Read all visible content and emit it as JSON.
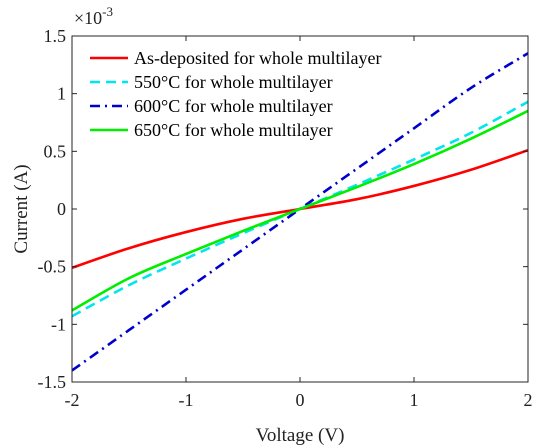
{
  "chart_data": {
    "type": "line",
    "xlabel": "Voltage (V)",
    "ylabel": "Current (A)",
    "xlim": [
      -2,
      2
    ],
    "ylim": [
      -0.0015,
      0.0015
    ],
    "x_ticks": [
      -2,
      -1,
      0,
      1,
      2
    ],
    "x_tick_labels": [
      "-2",
      "-1",
      "0",
      "1",
      "2"
    ],
    "y_ticks": [
      -0.0015,
      -0.001,
      -0.0005,
      0,
      0.0005,
      0.001,
      0.0015
    ],
    "y_tick_labels": [
      "-1.5",
      "-1",
      "-0.5",
      "0",
      "0.5",
      "1",
      "1.5"
    ],
    "y_multiplier_base": "×10",
    "y_multiplier_exp": "-3",
    "grid": false,
    "legend_position": "top-left",
    "x": [
      -2,
      -1.5,
      -1,
      -0.5,
      0,
      0.5,
      1,
      1.5,
      2
    ],
    "series": [
      {
        "name": "As-deposited for whole multilayer",
        "color": "#ff0000",
        "dash": "solid",
        "values": [
          -0.00051,
          -0.00034,
          -0.0002,
          -8.5e-05,
          0,
          8.5e-05,
          0.0002,
          0.00034,
          0.00051
        ]
      },
      {
        "name": "550°C for whole multilayer",
        "color": "#00e5ee",
        "dash": "dash",
        "values": [
          -0.00093,
          -0.00066,
          -0.00043,
          -0.00021,
          0,
          0.00021,
          0.00043,
          0.00066,
          0.00093
        ]
      },
      {
        "name": "600°C for whole multilayer",
        "color": "#0000cd",
        "dash": "dashdot",
        "values": [
          -0.0014,
          -0.00105,
          -0.0007,
          -0.00035,
          0,
          0.00035,
          0.0007,
          0.00105,
          0.00135
        ]
      },
      {
        "name": "650°C for whole multilayer",
        "color": "#00ee00",
        "dash": "solid",
        "values": [
          -0.00088,
          -0.0006,
          -0.00039,
          -0.00019,
          0,
          0.00019,
          0.00039,
          0.00061,
          0.00085
        ]
      }
    ]
  }
}
